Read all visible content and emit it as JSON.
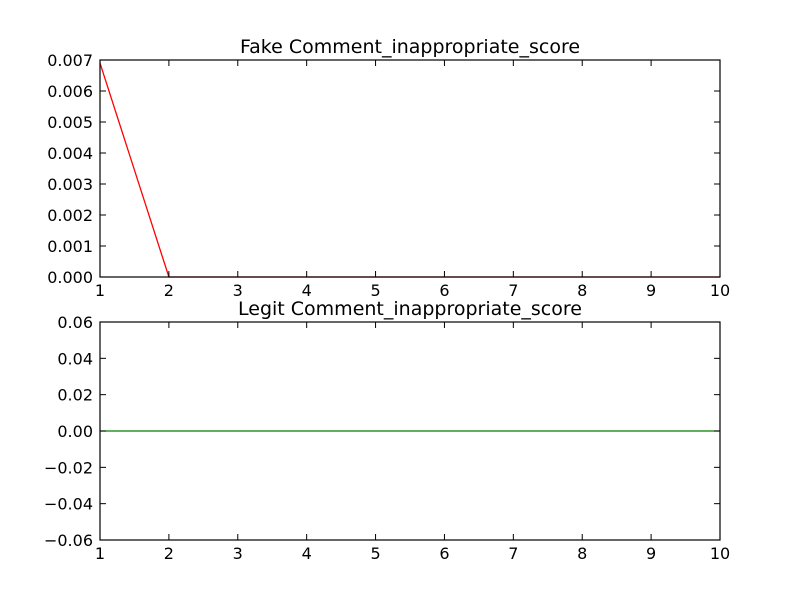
{
  "chart_data": [
    {
      "type": "line",
      "title": "Fake Comment_inappropriate_score",
      "xlabel": "",
      "ylabel": "",
      "x": [
        1,
        2,
        3,
        4,
        5,
        6,
        7,
        8,
        9,
        10
      ],
      "series": [
        {
          "color": "#ff0000",
          "values": [
            0.0069,
            0.0,
            0.0,
            0.0,
            0.0,
            0.0,
            0.0,
            0.0,
            0.0,
            0.0
          ]
        }
      ],
      "xlim": [
        1,
        10
      ],
      "ylim": [
        0,
        0.007
      ],
      "xticks": [
        "1",
        "2",
        "3",
        "4",
        "5",
        "6",
        "7",
        "8",
        "9",
        "10"
      ],
      "yticks": [
        "0.000",
        "0.001",
        "0.002",
        "0.003",
        "0.004",
        "0.005",
        "0.006",
        "0.007"
      ],
      "grid": false,
      "legend": "none"
    },
    {
      "type": "line",
      "title": "Legit Comment_inappropriate_score",
      "xlabel": "",
      "ylabel": "",
      "x": [
        1,
        2,
        3,
        4,
        5,
        6,
        7,
        8,
        9,
        10
      ],
      "series": [
        {
          "color": "#008000",
          "values": [
            0,
            0,
            0,
            0,
            0,
            0,
            0,
            0,
            0,
            0
          ]
        }
      ],
      "xlim": [
        1,
        10
      ],
      "ylim": [
        -0.06,
        0.06
      ],
      "xticks": [
        "1",
        "2",
        "3",
        "4",
        "5",
        "6",
        "7",
        "8",
        "9",
        "10"
      ],
      "yticks": [
        "−0.06",
        "−0.04",
        "−0.02",
        "0.00",
        "0.02",
        "0.04",
        "0.06"
      ],
      "grid": false,
      "legend": "none"
    }
  ]
}
